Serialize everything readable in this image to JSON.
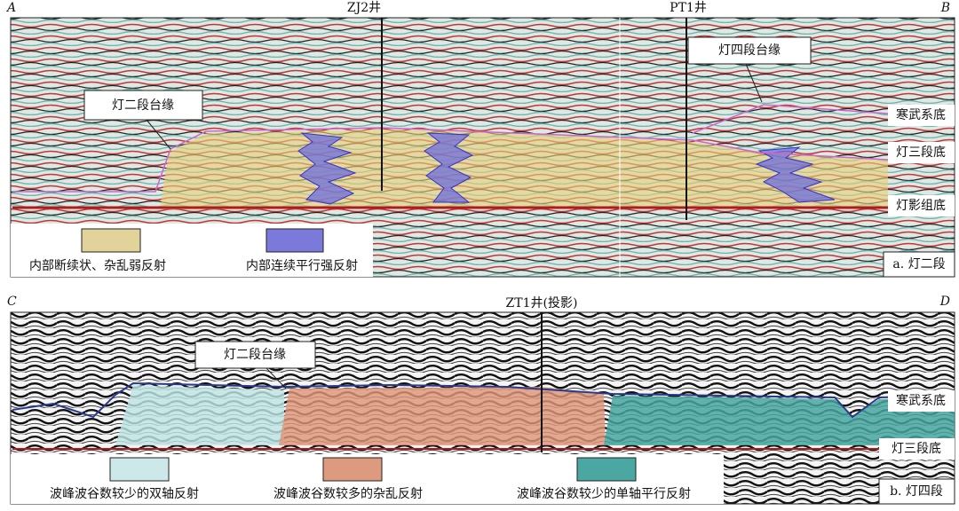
{
  "panels": [
    {
      "corner_left": "A",
      "corner_right": "B",
      "wells": [
        "ZJ2井",
        "PT1井"
      ],
      "callouts": [
        "灯二段台缘",
        "灯四段台缘"
      ],
      "horizons": [
        "寒武系底",
        "灯三段底",
        "灯影组底"
      ],
      "legend": [
        "内部断续状、杂乱弱反射",
        "内部连续平行强反射"
      ],
      "label": "a. 灯二段"
    },
    {
      "corner_left": "C",
      "corner_right": "D",
      "wells": [
        "ZT1井(投影)"
      ],
      "callouts": [
        "灯二段台缘"
      ],
      "horizons": [
        "寒武系底",
        "灯三段底"
      ],
      "legend": [
        "波峰波谷数较少的双轴反射",
        "波峰波谷数较多的杂乱反射",
        "波峰波谷数较少的单轴平行反射"
      ],
      "label": "b. 灯四段"
    }
  ]
}
